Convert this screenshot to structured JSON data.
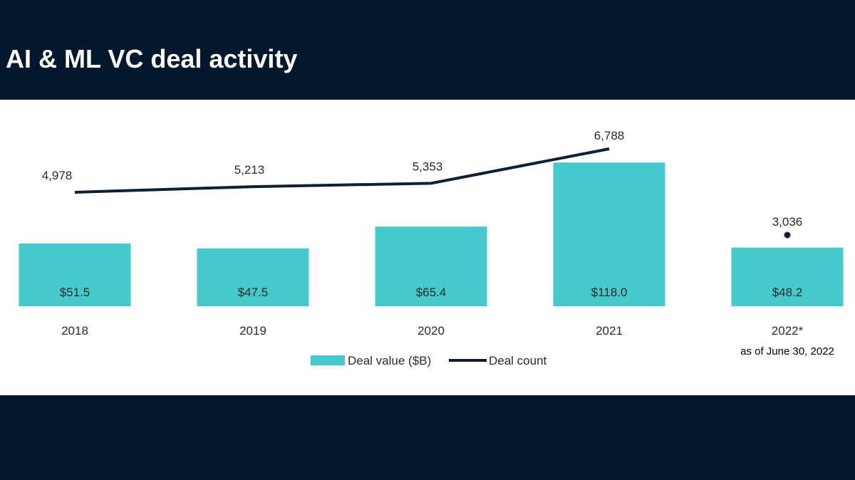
{
  "chart_data": {
    "type": "bar",
    "title": "AI & ML VC deal activity",
    "categories": [
      "2018",
      "2019",
      "2020",
      "2021",
      "2022*"
    ],
    "series": [
      {
        "name": "Deal value ($B)",
        "type": "bar",
        "values": [
          51.5,
          47.5,
          65.4,
          118.0,
          48.2
        ],
        "labels": [
          "$51.5",
          "$47.5",
          "$65.4",
          "$118.0",
          "$48.2"
        ],
        "color": "#45c9cb"
      },
      {
        "name": "Deal count",
        "type": "line",
        "values": [
          4978,
          5213,
          5353,
          6788,
          3036
        ],
        "labels": [
          "4,978",
          "5,213",
          "5,353",
          "6,788",
          "3,036"
        ],
        "color": "#0d1f33",
        "note": "2022 shown as separate dot"
      }
    ],
    "footnote": "as of June 30, 2022",
    "legend": "bottom",
    "grid": false,
    "xlabel": "",
    "ylabel": ""
  },
  "colors": {
    "background": "#03182e",
    "panel": "#ffffff"
  }
}
